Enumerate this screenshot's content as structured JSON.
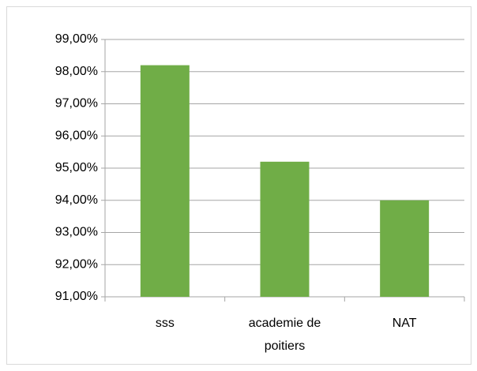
{
  "chart_data": {
    "type": "bar",
    "categories": [
      "sss",
      "academie de poitiers",
      "NAT"
    ],
    "values": [
      98.2,
      95.2,
      94.0
    ],
    "color": "#70ad47",
    "ylim": [
      91,
      99
    ],
    "yticks": [
      {
        "value": 91,
        "label": "91,00%"
      },
      {
        "value": 92,
        "label": "92,00%"
      },
      {
        "value": 93,
        "label": "93,00%"
      },
      {
        "value": 94,
        "label": "94,00%"
      },
      {
        "value": 95,
        "label": "95,00%"
      },
      {
        "value": 96,
        "label": "96,00%"
      },
      {
        "value": 97,
        "label": "97,00%"
      },
      {
        "value": 98,
        "label": "98,00%"
      },
      {
        "value": 99,
        "label": "99,00%"
      }
    ],
    "grid": true
  }
}
